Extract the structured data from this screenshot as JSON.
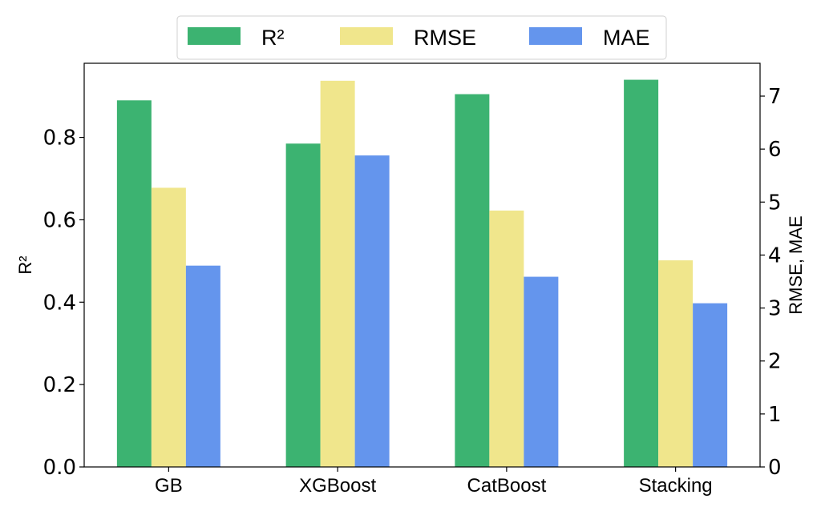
{
  "chart_data": {
    "type": "bar",
    "categories": [
      "GB",
      "XGBoost",
      "CatBoost",
      "Stacking"
    ],
    "series": [
      {
        "name": "R²",
        "axis": "left",
        "color": "#3cb371",
        "values": [
          0.89,
          0.785,
          0.905,
          0.94
        ]
      },
      {
        "name": "RMSE",
        "axis": "right",
        "color": "#f0e68c",
        "values": [
          5.27,
          7.29,
          4.84,
          3.9
        ]
      },
      {
        "name": "MAE",
        "axis": "right",
        "color": "#6495ed",
        "values": [
          3.8,
          5.88,
          3.59,
          3.09
        ]
      }
    ],
    "ylabel": "R²",
    "y2label": "RMSE, MAE",
    "ylim": [
      0,
      0.98
    ],
    "y2lim": [
      0,
      7.62
    ],
    "yticks": [
      "0.0",
      "0.2",
      "0.4",
      "0.6",
      "0.8"
    ],
    "y2ticks": [
      "0",
      "1",
      "2",
      "3",
      "4",
      "5",
      "6",
      "7"
    ],
    "legend_position": "top-center",
    "grid": false
  }
}
